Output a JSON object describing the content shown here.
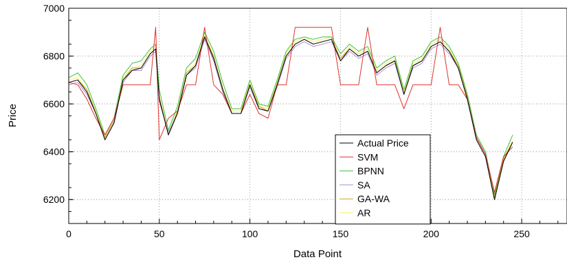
{
  "chart_data": {
    "type": "line",
    "title": "",
    "xlabel": "Data Point",
    "ylabel": "Price",
    "xlim": [
      0,
      275
    ],
    "ylim": [
      6100,
      7000
    ],
    "xticks": [
      0,
      50,
      100,
      150,
      200,
      250
    ],
    "yticks": [
      6200,
      6400,
      6600,
      6800,
      7000
    ],
    "grid": true,
    "legend_position": "lower-center",
    "series": [
      {
        "name": "Actual Price",
        "color": "#000000",
        "x": [
          0,
          5,
          10,
          15,
          20,
          25,
          30,
          35,
          40,
          45,
          48,
          50,
          55,
          60,
          65,
          70,
          75,
          80,
          85,
          90,
          95,
          100,
          105,
          110,
          115,
          120,
          125,
          130,
          135,
          140,
          145,
          150,
          155,
          160,
          165,
          170,
          175,
          180,
          185,
          190,
          195,
          200,
          205,
          210,
          215,
          220,
          225,
          230,
          235,
          240,
          245
        ],
        "y": [
          6690,
          6700,
          6650,
          6560,
          6450,
          6520,
          6700,
          6740,
          6750,
          6810,
          6830,
          6620,
          6470,
          6560,
          6720,
          6760,
          6880,
          6790,
          6660,
          6560,
          6560,
          6680,
          6580,
          6570,
          6680,
          6800,
          6850,
          6870,
          6850,
          6860,
          6870,
          6780,
          6830,
          6800,
          6820,
          6730,
          6760,
          6780,
          6640,
          6760,
          6780,
          6840,
          6860,
          6820,
          6750,
          6620,
          6450,
          6380,
          6200,
          6360,
          6440
        ]
      },
      {
        "name": "SVM",
        "color": "#e0302a",
        "x": [
          0,
          5,
          10,
          15,
          20,
          25,
          30,
          35,
          40,
          45,
          48,
          50,
          55,
          60,
          65,
          70,
          75,
          80,
          85,
          90,
          95,
          100,
          105,
          110,
          115,
          120,
          125,
          130,
          135,
          140,
          145,
          150,
          155,
          160,
          165,
          170,
          175,
          180,
          185,
          190,
          195,
          200,
          205,
          210,
          215,
          220,
          225,
          230,
          235,
          240,
          245
        ],
        "y": [
          6690,
          6680,
          6620,
          6540,
          6470,
          6540,
          6680,
          6680,
          6680,
          6680,
          6920,
          6450,
          6540,
          6570,
          6680,
          6680,
          6920,
          6680,
          6640,
          6560,
          6560,
          6640,
          6560,
          6540,
          6680,
          6680,
          6920,
          6920,
          6920,
          6920,
          6920,
          6680,
          6680,
          6680,
          6920,
          6680,
          6680,
          6680,
          6580,
          6680,
          6680,
          6680,
          6920,
          6680,
          6680,
          6620,
          6460,
          6390,
          6230,
          6380,
          6420
        ]
      },
      {
        "name": "BPNN",
        "color": "#3cc23c",
        "x": [
          0,
          5,
          10,
          15,
          20,
          25,
          30,
          35,
          40,
          45,
          48,
          50,
          55,
          60,
          65,
          70,
          75,
          80,
          85,
          90,
          95,
          100,
          105,
          110,
          115,
          120,
          125,
          130,
          135,
          140,
          145,
          150,
          155,
          160,
          165,
          170,
          175,
          180,
          185,
          190,
          195,
          200,
          205,
          210,
          215,
          220,
          225,
          230,
          235,
          240,
          245
        ],
        "y": [
          6710,
          6730,
          6680,
          6580,
          6470,
          6540,
          6720,
          6770,
          6780,
          6830,
          6850,
          6660,
          6490,
          6590,
          6750,
          6790,
          6900,
          6820,
          6690,
          6580,
          6580,
          6700,
          6600,
          6590,
          6700,
          6820,
          6870,
          6880,
          6870,
          6880,
          6880,
          6810,
          6850,
          6820,
          6840,
          6750,
          6780,
          6800,
          6660,
          6780,
          6800,
          6860,
          6880,
          6840,
          6770,
          6640,
          6470,
          6400,
          6220,
          6380,
          6470
        ]
      },
      {
        "name": "SA",
        "color": "#a98ad8",
        "x": [
          0,
          5,
          10,
          15,
          20,
          25,
          30,
          35,
          40,
          45,
          48,
          50,
          55,
          60,
          65,
          70,
          75,
          80,
          85,
          90,
          95,
          100,
          105,
          110,
          115,
          120,
          125,
          130,
          135,
          140,
          145,
          150,
          155,
          160,
          165,
          170,
          175,
          180,
          185,
          190,
          195,
          200,
          205,
          210,
          215,
          220,
          225,
          230,
          235,
          240,
          245
        ],
        "y": [
          6680,
          6690,
          6640,
          6560,
          6450,
          6520,
          6690,
          6740,
          6740,
          6800,
          6820,
          6610,
          6480,
          6560,
          6720,
          6750,
          6870,
          6780,
          6650,
          6560,
          6560,
          6670,
          6580,
          6570,
          6670,
          6790,
          6840,
          6860,
          6840,
          6850,
          6860,
          6780,
          6820,
          6790,
          6810,
          6720,
          6750,
          6770,
          6640,
          6750,
          6770,
          6830,
          6850,
          6810,
          6750,
          6620,
          6450,
          6380,
          6200,
          6360,
          6440
        ]
      },
      {
        "name": "GA-WA",
        "color": "#d2a21e",
        "x": [
          0,
          5,
          10,
          15,
          20,
          25,
          30,
          35,
          40,
          45,
          48,
          50,
          55,
          60,
          65,
          70,
          75,
          80,
          85,
          90,
          95,
          100,
          105,
          110,
          115,
          120,
          125,
          130,
          135,
          140,
          145,
          150,
          155,
          160,
          165,
          170,
          175,
          180,
          185,
          190,
          195,
          200,
          205,
          210,
          215,
          220,
          225,
          230,
          235,
          240,
          245
        ],
        "y": [
          6690,
          6700,
          6660,
          6560,
          6460,
          6530,
          6700,
          6750,
          6750,
          6810,
          6830,
          6630,
          6470,
          6570,
          6730,
          6760,
          6880,
          6800,
          6660,
          6560,
          6560,
          6680,
          6590,
          6570,
          6680,
          6800,
          6850,
          6870,
          6850,
          6860,
          6870,
          6790,
          6830,
          6800,
          6820,
          6730,
          6760,
          6780,
          6640,
          6760,
          6780,
          6840,
          6860,
          6820,
          6760,
          6630,
          6460,
          6390,
          6210,
          6370,
          6440
        ]
      },
      {
        "name": "AR",
        "color": "#f2ef6a",
        "x": [
          0,
          5,
          10,
          15,
          20,
          25,
          30,
          35,
          40,
          45,
          48,
          50,
          55,
          60,
          65,
          70,
          75,
          80,
          85,
          90,
          95,
          100,
          105,
          110,
          115,
          120,
          125,
          130,
          135,
          140,
          145,
          150,
          155,
          160,
          165,
          170,
          175,
          180,
          185,
          190,
          195,
          200,
          205,
          210,
          215,
          220,
          225,
          230,
          235,
          240,
          245
        ],
        "y": [
          6700,
          6710,
          6660,
          6570,
          6460,
          6530,
          6710,
          6750,
          6760,
          6820,
          6840,
          6630,
          6480,
          6570,
          6730,
          6770,
          6890,
          6800,
          6670,
          6570,
          6570,
          6690,
          6590,
          6580,
          6690,
          6810,
          6860,
          6880,
          6860,
          6870,
          6880,
          6790,
          6840,
          6810,
          6830,
          6740,
          6770,
          6790,
          6650,
          6770,
          6790,
          6850,
          6870,
          6830,
          6760,
          6630,
          6460,
          6390,
          6210,
          6370,
          6450
        ]
      }
    ]
  }
}
